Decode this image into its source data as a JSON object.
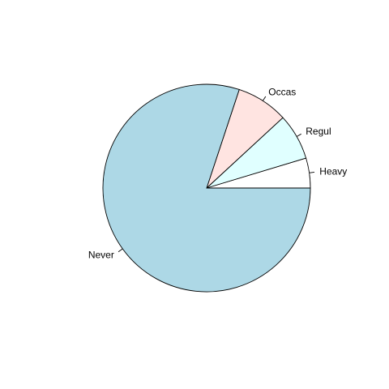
{
  "chart_data": {
    "type": "pie",
    "title": "",
    "categories": [
      "Heavy",
      "Regul",
      "Occas",
      "Never"
    ],
    "values": [
      11,
      17,
      19,
      189
    ],
    "colors": [
      "#ffffff",
      "#e0ffff",
      "#ffe4e1",
      "#add8e6"
    ],
    "start_angle_deg": 0,
    "direction": "counterclockwise",
    "border_color": "#000000",
    "legend": "none"
  }
}
